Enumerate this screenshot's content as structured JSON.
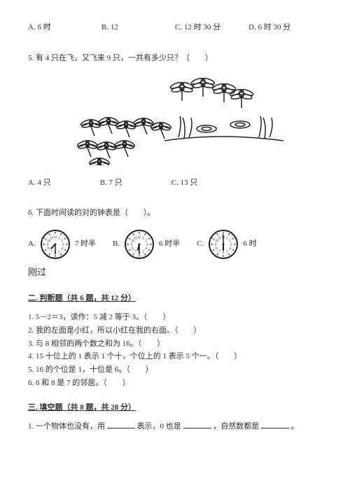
{
  "q4_options": {
    "a": "A. 6 时",
    "b": "B. 12",
    "c": "C. 12 时 30 分",
    "d": "D. 6 时 30 分"
  },
  "q5": {
    "text": "5. 有 4 只在飞，又飞来 9 只，一共有多少只？（　　）",
    "opt_a": "A. 4 只",
    "opt_b": "B. 7 只",
    "opt_c": "C. 13 只"
  },
  "q6": {
    "text": "6. 下面时间读的对的钟表是（　　）。",
    "a_pre": "A.",
    "a_post": "7 时半",
    "b_pre": "B.",
    "b_post": "6 时半",
    "c_pre": "C.",
    "c_post": "6 时",
    "extra": "刚过"
  },
  "section2": {
    "header": "二. 判断题（共 6 题，共 12 分）",
    "items": [
      "1. 5－2＝3，读作：5 减 2 等于 3。（　　）",
      "2. 我的左面是小红，所以小红在我的右面。（　　）",
      "3. 与 8 相邻的两个数之和为 16。（　　）",
      "4. 15 十位上的 1 表示 1 个十，个位上的 1 表示 5 个一。（　　）",
      "5. 16 的个位是 1，十位是 6。（　　）",
      "6. 6 和 8 是 7 的邻居。（　　）"
    ]
  },
  "section3": {
    "header": "三. 填空题（共 8 题，共 28 分）",
    "item1_p1": "1. 一个物体也没有，用",
    "item1_p2": "表示，0 也是",
    "item1_p3": "，自然数都是",
    "item1_p4": "。"
  },
  "clocks": {
    "a": {
      "hour_angle": 225,
      "minute_angle": 180
    },
    "b": {
      "hour_angle": 195,
      "minute_angle": 180
    },
    "c": {
      "hour_angle": 180,
      "minute_angle": 0
    }
  }
}
